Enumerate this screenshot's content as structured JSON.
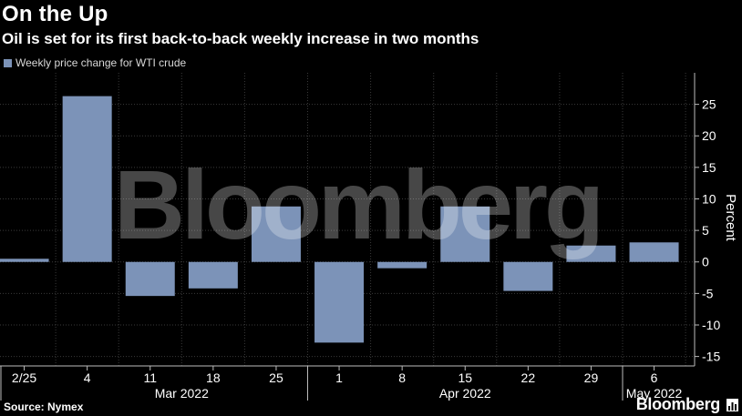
{
  "header": {
    "title": "On the Up",
    "subtitle": "Oil is set for its first back-to-back weekly increase in two months"
  },
  "footer": {
    "source": "Source: Nymex",
    "brand": "Bloomberg",
    "brand_icon": "bloomberg-chart-icon"
  },
  "watermark": "Bloomberg",
  "colors": {
    "background": "#000000",
    "bar": "#7c93b8",
    "text": "#ffffff",
    "grid": "#3a3a3a"
  },
  "chart_data": {
    "type": "bar",
    "title": "On the Up",
    "subtitle": "Oil is set for its first back-to-back weekly increase in two months",
    "legend": [
      "Weekly price change for WTI crude"
    ],
    "legend_position": "top-left",
    "categories": [
      "2/25",
      "4",
      "11",
      "18",
      "25",
      "1",
      "8",
      "15",
      "22",
      "29",
      "6"
    ],
    "month_labels": [
      {
        "label": "Mar 2022",
        "start_index": 1,
        "end_index": 4
      },
      {
        "label": "Apr 2022",
        "start_index": 5,
        "end_index": 9
      },
      {
        "label": "May 2022",
        "start_index": 10,
        "end_index": 10
      }
    ],
    "series": [
      {
        "name": "Weekly price change for WTI crude",
        "values": [
          0.5,
          26.3,
          -5.4,
          -4.2,
          8.8,
          -12.8,
          -1.0,
          8.8,
          -4.6,
          2.6,
          3.1
        ]
      }
    ],
    "ylabel": "Percent",
    "yticks": [
      25,
      20,
      15,
      10,
      5,
      0,
      -5,
      -10,
      -15
    ],
    "ytick_labels": [
      "25",
      "20",
      "15",
      "10",
      "5",
      "0",
      "-5",
      "-10",
      "-15"
    ],
    "ylim": [
      -16.5,
      30
    ],
    "grid": true,
    "y_axis_side": "right"
  }
}
